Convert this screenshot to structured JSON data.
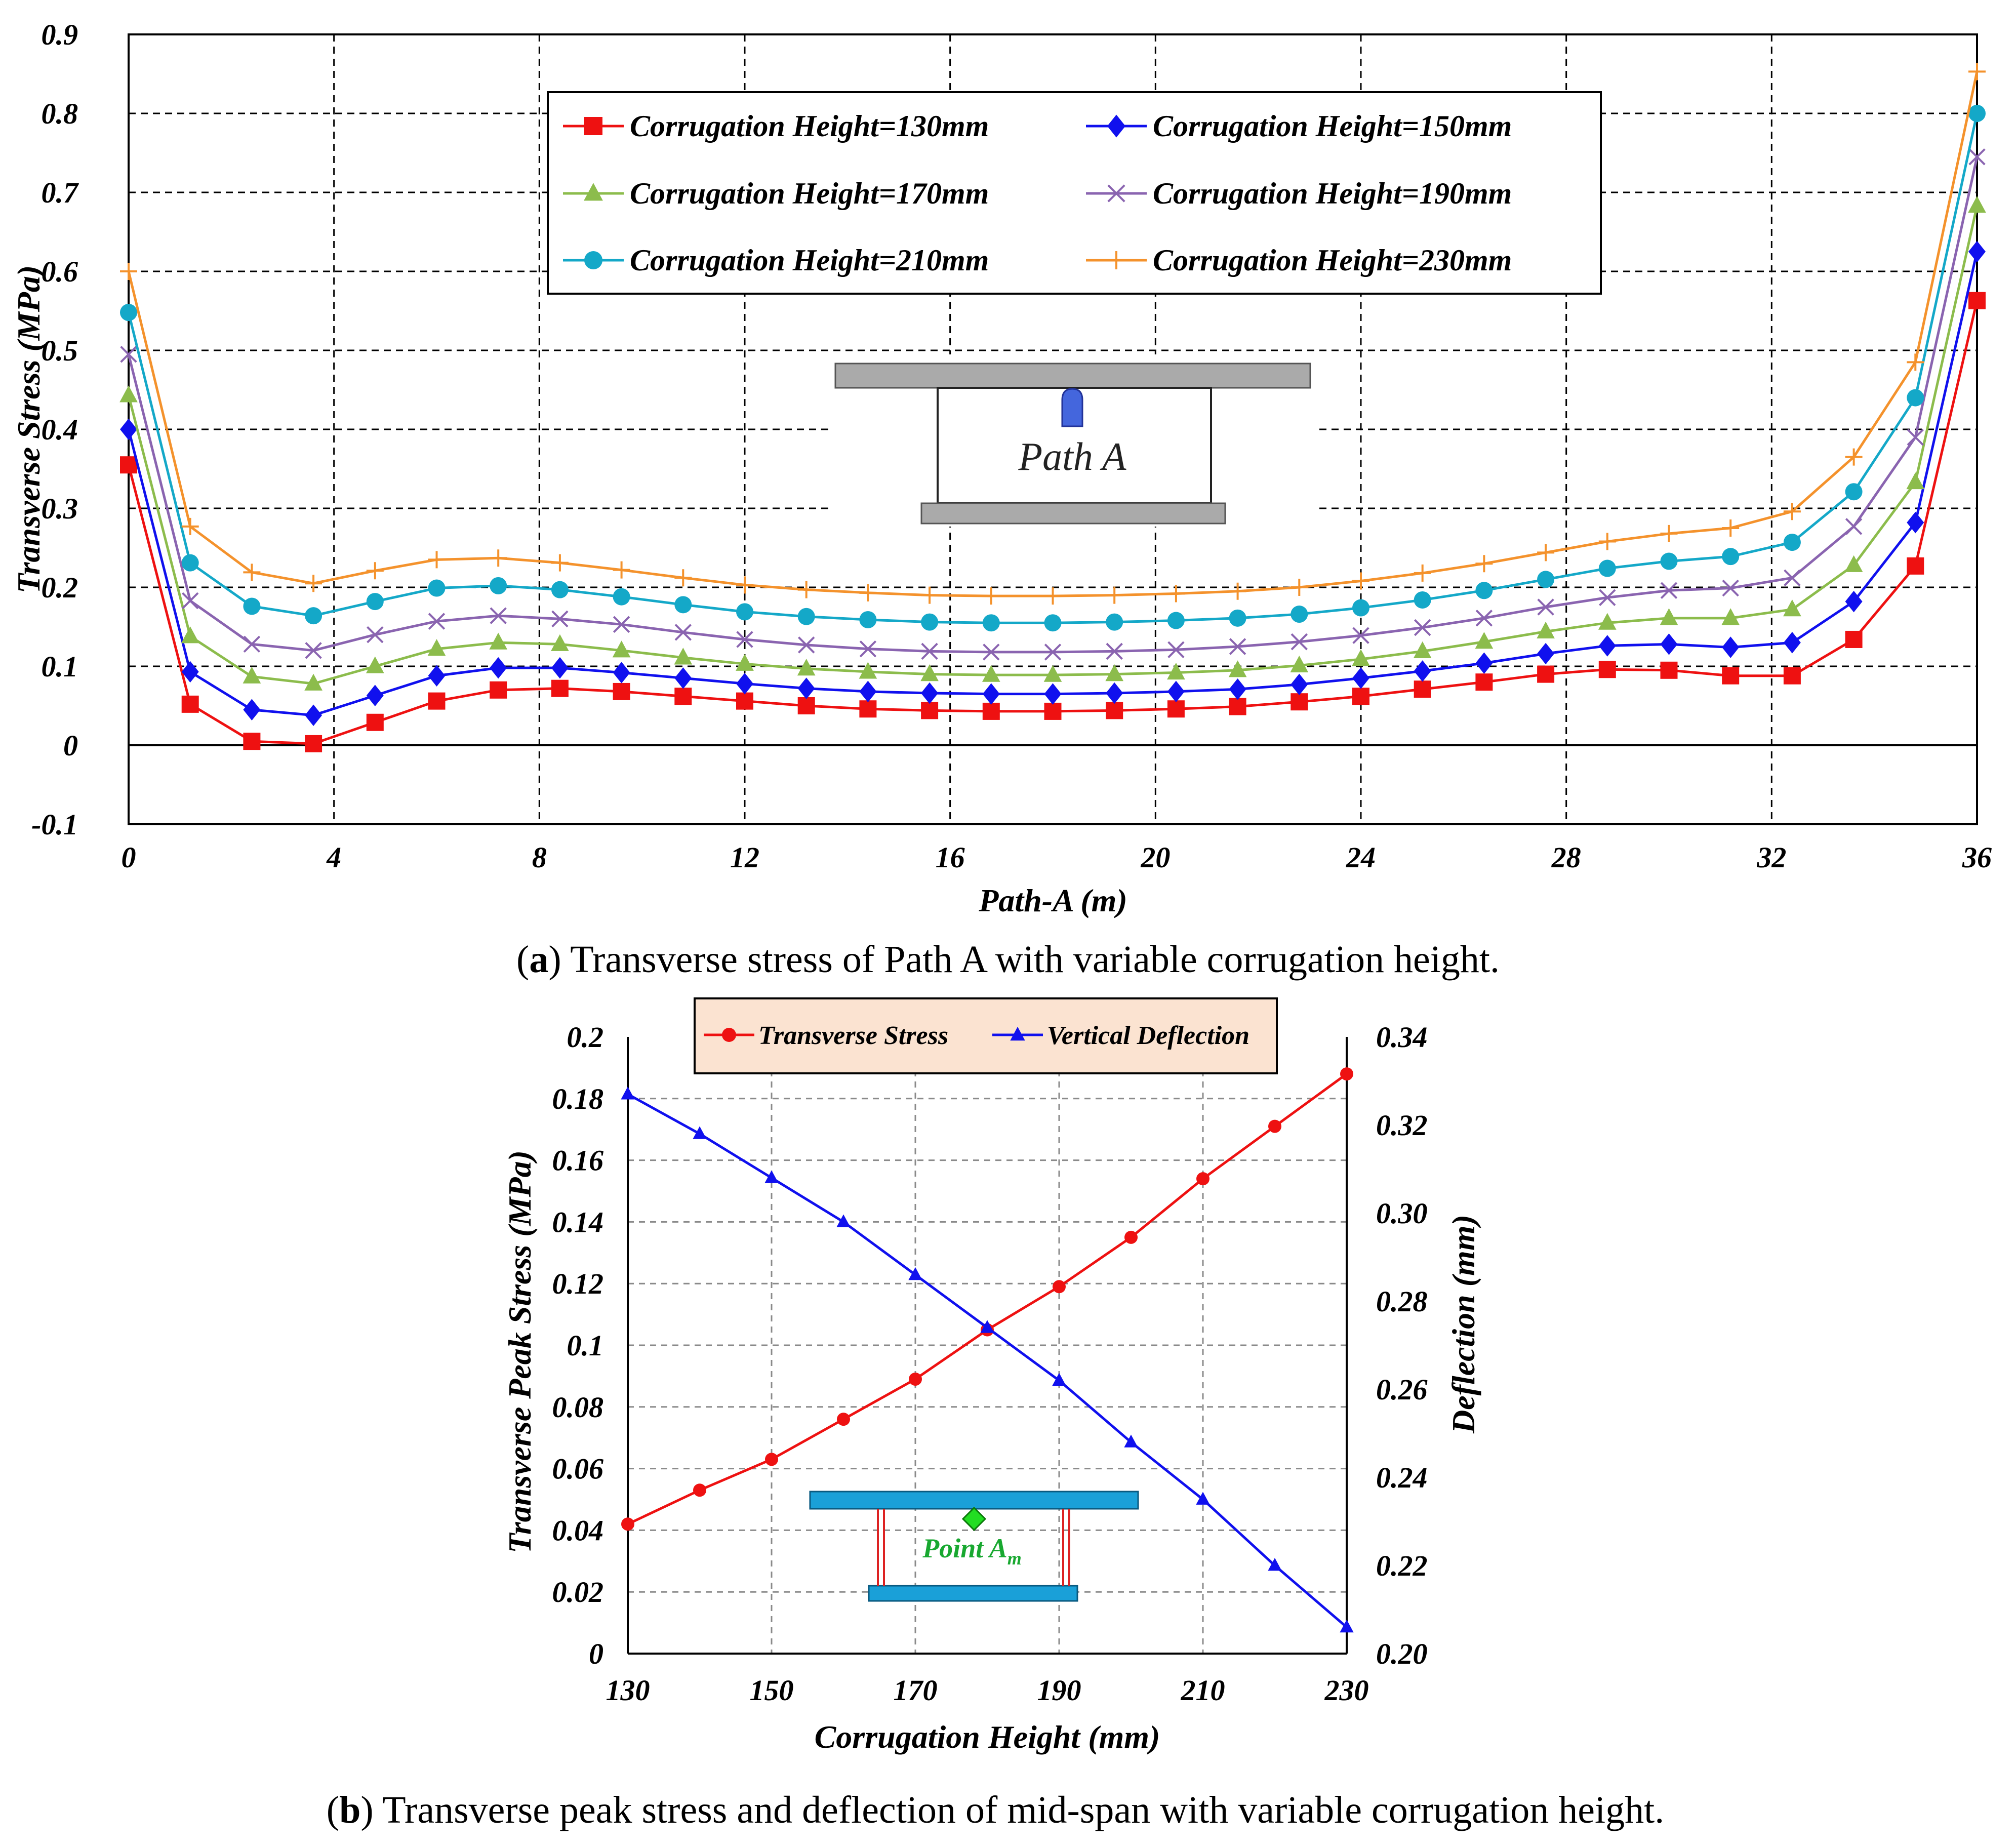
{
  "chart_data": [
    {
      "type": "line",
      "panel": "a",
      "xlabel": "Path-A (m)",
      "ylabel": "Transverse Stress (MPa)",
      "xlim": [
        0,
        36
      ],
      "ylim": [
        -0.1,
        0.9
      ],
      "x_ticks": [
        "0",
        "4",
        "8",
        "12",
        "16",
        "20",
        "24",
        "28",
        "32",
        "36"
      ],
      "y_ticks": [
        "0.9",
        "0.8",
        "0.7",
        "0.6",
        "0.5",
        "0.4",
        "0.3",
        "0.2",
        "0.1",
        "0",
        "-0.1"
      ],
      "x": [
        0,
        1.2,
        2.4,
        3.6,
        4.8,
        6,
        7.2,
        8.4,
        9.6,
        10.8,
        12,
        13.2,
        14.4,
        15.6,
        16.8,
        18,
        19.2,
        20.4,
        21.6,
        22.8,
        24,
        25.2,
        26.4,
        27.6,
        28.8,
        30,
        31.2,
        32.4,
        33.6,
        34.8,
        36
      ],
      "series": [
        {
          "name": "Corrugation Height=130mm",
          "color": "#ee1111",
          "marker": "square",
          "values": [
            0.355,
            0.052,
            0.005,
            0.002,
            0.029,
            0.056,
            0.07,
            0.072,
            0.068,
            0.062,
            0.056,
            0.05,
            0.046,
            0.044,
            0.043,
            0.043,
            0.044,
            0.046,
            0.049,
            0.055,
            0.062,
            0.071,
            0.08,
            0.09,
            0.096,
            0.095,
            0.088,
            0.088,
            0.134,
            0.227,
            0.563
          ]
        },
        {
          "name": "Corrugation Height=150mm",
          "color": "#1010ee",
          "marker": "diamond",
          "values": [
            0.4,
            0.093,
            0.045,
            0.038,
            0.063,
            0.088,
            0.098,
            0.098,
            0.092,
            0.085,
            0.078,
            0.072,
            0.068,
            0.066,
            0.065,
            0.065,
            0.066,
            0.068,
            0.071,
            0.077,
            0.085,
            0.094,
            0.104,
            0.116,
            0.126,
            0.128,
            0.124,
            0.13,
            0.182,
            0.282,
            0.625
          ]
        },
        {
          "name": "Corrugation Height=170mm",
          "color": "#8cbc4c",
          "marker": "triangle",
          "values": [
            0.443,
            0.138,
            0.087,
            0.078,
            0.1,
            0.122,
            0.13,
            0.128,
            0.12,
            0.111,
            0.103,
            0.097,
            0.093,
            0.09,
            0.089,
            0.089,
            0.09,
            0.092,
            0.095,
            0.101,
            0.109,
            0.119,
            0.131,
            0.144,
            0.155,
            0.161,
            0.161,
            0.172,
            0.228,
            0.333,
            0.683
          ]
        },
        {
          "name": "Corrugation Height=190mm",
          "color": "#8a64b0",
          "marker": "x",
          "values": [
            0.495,
            0.183,
            0.128,
            0.12,
            0.14,
            0.157,
            0.164,
            0.16,
            0.153,
            0.143,
            0.134,
            0.127,
            0.122,
            0.119,
            0.118,
            0.118,
            0.119,
            0.121,
            0.125,
            0.131,
            0.139,
            0.149,
            0.161,
            0.175,
            0.187,
            0.196,
            0.199,
            0.212,
            0.277,
            0.39,
            0.745
          ]
        },
        {
          "name": "Corrugation Height=210mm",
          "color": "#14a8c8",
          "marker": "circle",
          "values": [
            0.548,
            0.231,
            0.176,
            0.164,
            0.182,
            0.199,
            0.202,
            0.197,
            0.188,
            0.178,
            0.169,
            0.163,
            0.159,
            0.156,
            0.155,
            0.155,
            0.156,
            0.158,
            0.161,
            0.166,
            0.174,
            0.184,
            0.196,
            0.21,
            0.224,
            0.233,
            0.239,
            0.257,
            0.321,
            0.44,
            0.8
          ]
        },
        {
          "name": "Corrugation Height=230mm",
          "color": "#f4922c",
          "marker": "plus",
          "values": [
            0.6,
            0.277,
            0.219,
            0.205,
            0.221,
            0.235,
            0.237,
            0.231,
            0.222,
            0.212,
            0.203,
            0.197,
            0.193,
            0.19,
            0.189,
            0.189,
            0.19,
            0.192,
            0.195,
            0.2,
            0.208,
            0.218,
            0.23,
            0.244,
            0.258,
            0.268,
            0.275,
            0.296,
            0.365,
            0.485,
            0.853
          ]
        }
      ],
      "inset_label": "Path A",
      "caption_label": "a",
      "caption_text": "Transverse stress of Path A with variable corrugation height."
    },
    {
      "type": "line",
      "panel": "b",
      "xlabel": "Corrugation Height (mm)",
      "ylabel": "Transverse Peak Stress (MPa)",
      "y2label": "Deflection (mm)",
      "xlim": [
        130,
        230
      ],
      "ylim": [
        0,
        0.2
      ],
      "y2lim": [
        0.2,
        0.34
      ],
      "x_ticks": [
        "130",
        "150",
        "170",
        "190",
        "210",
        "230"
      ],
      "y_ticks": [
        "0.2",
        "0.18",
        "0.16",
        "0.14",
        "0.12",
        "0.1",
        "0.08",
        "0.06",
        "0.04",
        "0.02",
        "0"
      ],
      "y2_ticks": [
        "0.34",
        "0.32",
        "0.30",
        "0.28",
        "0.26",
        "0.24",
        "0.22",
        "0.20"
      ],
      "x": [
        130,
        140,
        150,
        160,
        170,
        180,
        190,
        200,
        210,
        220,
        230
      ],
      "series": [
        {
          "name": "Transverse Stress",
          "axis": "left",
          "color": "#ee1111",
          "marker": "circle",
          "values": [
            0.042,
            0.053,
            0.063,
            0.076,
            0.089,
            0.105,
            0.119,
            0.135,
            0.154,
            0.171,
            0.188
          ]
        },
        {
          "name": "Vertical Deflection",
          "axis": "right",
          "color": "#1010ee",
          "marker": "triangle",
          "values": [
            0.327,
            0.318,
            0.308,
            0.298,
            0.286,
            0.274,
            0.262,
            0.248,
            0.235,
            0.22,
            0.206
          ]
        }
      ],
      "inset_label_main": "Point A",
      "inset_label_sub": "m",
      "caption_label": "b",
      "caption_text": "Transverse peak stress and deflection of mid-span with variable corrugation height."
    }
  ]
}
